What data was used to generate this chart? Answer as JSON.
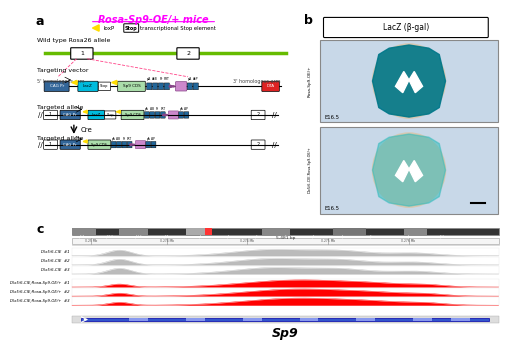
{
  "title_a": "Rosa-Sp9-OE/+ mice",
  "panel_a_label": "a",
  "panel_b_label": "b",
  "panel_c_label": "c",
  "lacz_label": "LacZ (β-gal)",
  "e165_label": "E16.5",
  "sp9_label": "Sp9",
  "wt_allele_label": "Wild type Rosa26 allele",
  "targeting_label": "Targeting vector",
  "targeted_label1": "Targeted allele",
  "targeted_label2": "Targeted allele",
  "cre_label": "Cre",
  "hom5_label": "5' homologous arm",
  "hom3_label": "3' homologous arm",
  "loxp_label": "loxP",
  "stop_legend_label": "transcriptional Stop element",
  "track_labels_gray": [
    "Dlx5/6-CIE  #1",
    "Dlx5/6-CIE  #2",
    "Dlx5/6-CIE  #3"
  ],
  "track_labels_red": [
    "Dlx5/6-CIE;Rosa-Sp9-OE/+  #1",
    "Dlx5/6-CIE;Rosa-Sp9-OE/+  #2",
    "Dlx5/6-CIE;Rosa-Sp9-OE/+  #3"
  ],
  "title_color": "#FF00FF",
  "bg_color": "#FFFFFF",
  "gray_track_color": "#AAAAAA",
  "red_track_color": "#FF0000",
  "blue_gene_color": "#0000CC",
  "chromosome_bar_color": "#333333"
}
